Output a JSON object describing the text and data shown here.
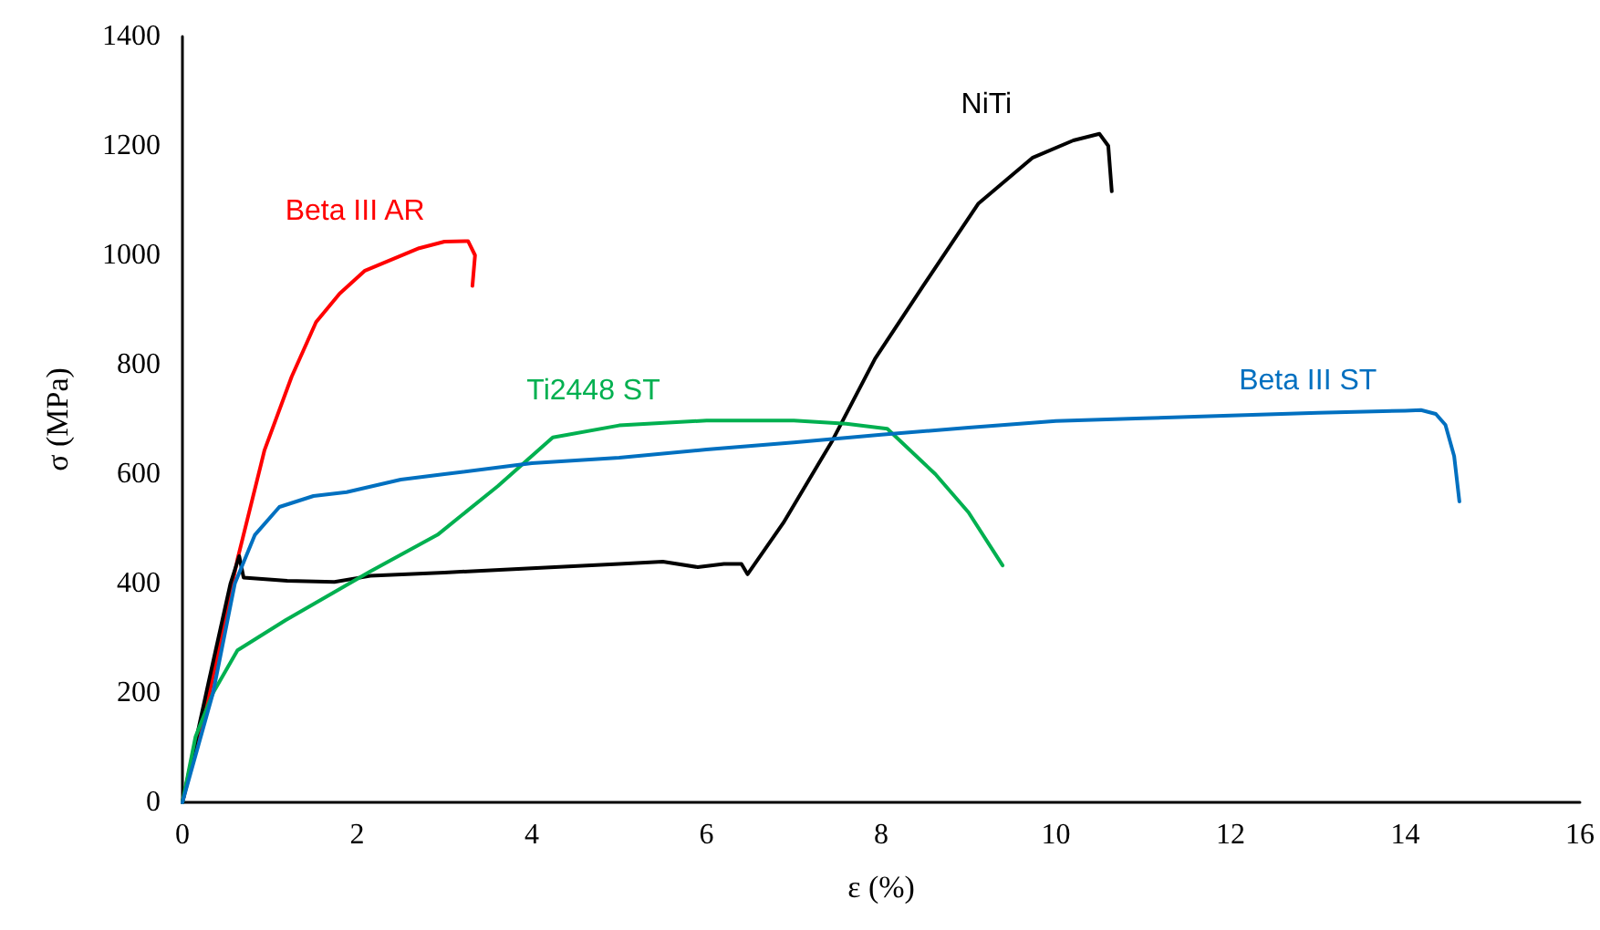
{
  "chart_data": {
    "type": "line",
    "xlabel": "ε (%)",
    "ylabel": "σ (MPa)",
    "xlim": [
      0,
      16
    ],
    "xticks": [
      0,
      2,
      4,
      6,
      8,
      10,
      12,
      14,
      16
    ],
    "ylim": [
      0,
      1400
    ],
    "yticks": [
      0,
      200,
      400,
      600,
      800,
      1000,
      1200,
      1400
    ],
    "grid": false,
    "legend": false,
    "marker": "none",
    "line_style": "solid",
    "series": [
      {
        "name": "Beta III AR",
        "color": "#ff0000",
        "x": [
          0,
          0.31,
          0.63,
          0.94,
          1.25,
          1.53,
          1.8,
          2.09,
          2.71,
          3.0,
          3.27,
          3.35,
          3.32
        ],
        "values": [
          0,
          200,
          444,
          644,
          778,
          878,
          930,
          972,
          1013,
          1025,
          1026,
          1000,
          944
        ]
      },
      {
        "name": "NiTi",
        "color": "#000000",
        "x": [
          0,
          0.3,
          0.55,
          0.65,
          0.7,
          1.2,
          1.74,
          2.15,
          3,
          4,
          5,
          5.5,
          5.9,
          6.2,
          6.4,
          6.47,
          6.88,
          7.44,
          7.93,
          8.48,
          9.11,
          9.73,
          10.2,
          10.5,
          10.6,
          10.64
        ],
        "values": [
          0,
          220,
          400,
          450,
          411,
          405,
          403,
          414,
          420,
          428,
          436,
          440,
          430,
          436,
          436,
          417,
          511,
          661,
          811,
          944,
          1094,
          1178,
          1210,
          1222,
          1200,
          1117
        ]
      },
      {
        "name": "Ti2448 ST",
        "color": "#00b050",
        "x": [
          0,
          0.15,
          0.35,
          0.63,
          1.18,
          2.15,
          2.92,
          3.61,
          4.24,
          5,
          6,
          7,
          7.6,
          8.07,
          8.62,
          9.0,
          9.39
        ],
        "values": [
          0,
          120,
          200,
          278,
          333,
          422,
          489,
          578,
          667,
          689,
          698,
          698,
          692,
          683,
          600,
          530,
          433
        ]
      },
      {
        "name": "Beta III ST",
        "color": "#0070c0",
        "x": [
          0,
          0.35,
          0.6,
          0.83,
          1.11,
          1.5,
          1.88,
          2.5,
          3,
          4,
          5,
          6,
          7,
          8,
          9,
          10,
          11,
          12,
          13,
          14,
          14.18,
          14.35,
          14.46,
          14.56,
          14.62
        ],
        "values": [
          0,
          200,
          400,
          489,
          540,
          560,
          567,
          590,
          600,
          620,
          630,
          645,
          658,
          672,
          685,
          697,
          702,
          707,
          712,
          716,
          717,
          710,
          690,
          633,
          550
        ]
      }
    ]
  }
}
